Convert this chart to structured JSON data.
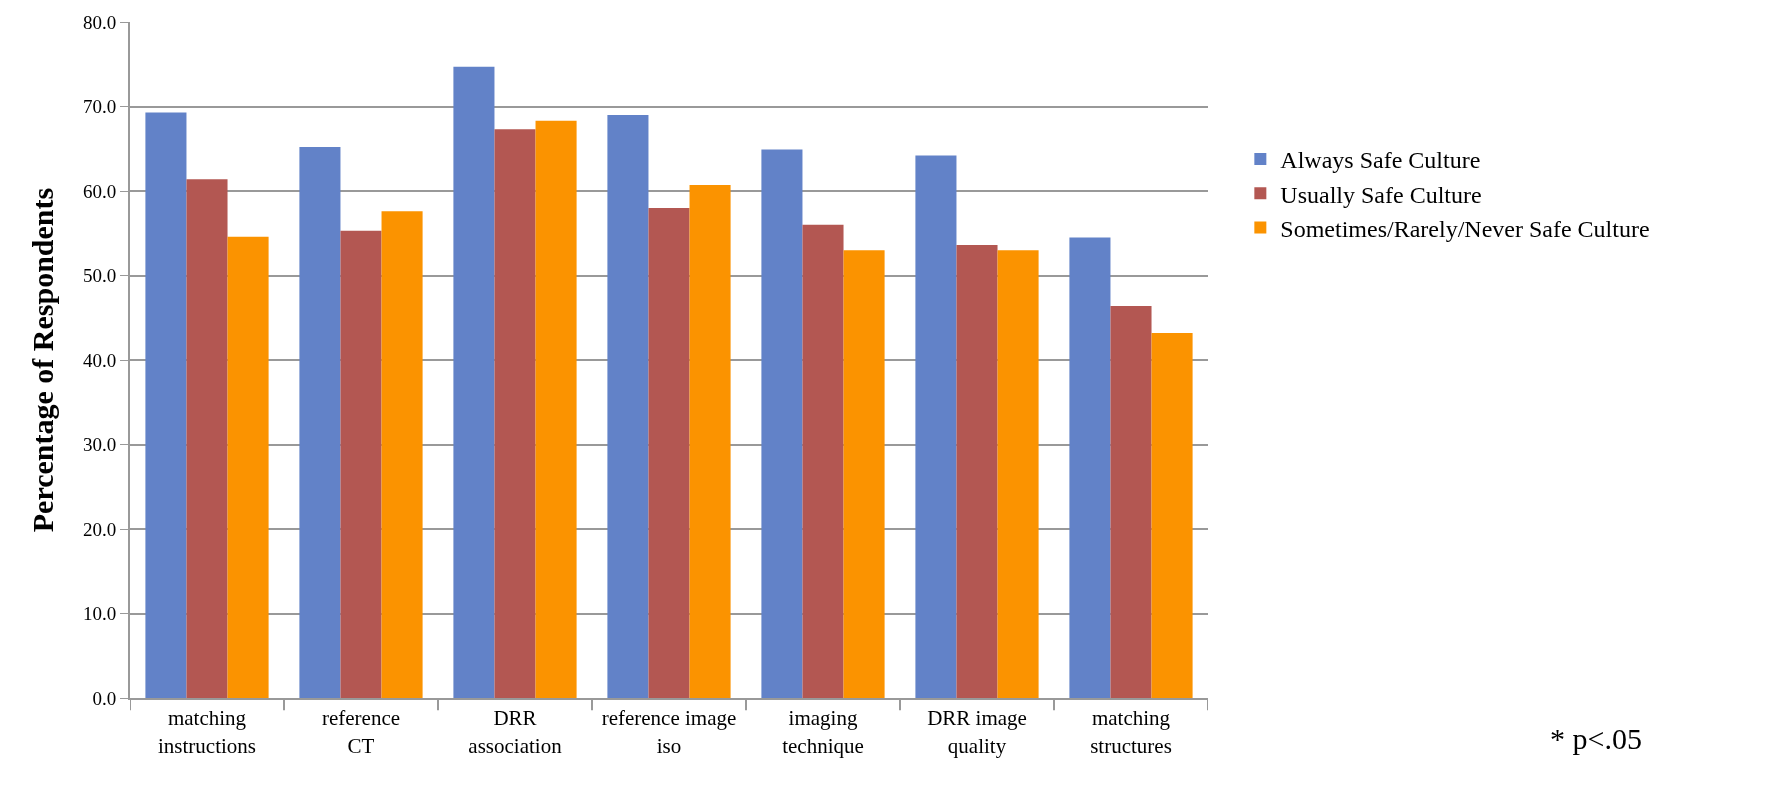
{
  "chart_data": {
    "type": "bar",
    "ylabel": "Percentage of Respondents",
    "categories": [
      "matching instructions",
      "reference CT",
      "DRR association",
      "reference image iso",
      "imaging technique",
      "DRR image quality",
      "matching structures"
    ],
    "series": [
      {
        "name": "Always Safe Culture",
        "color": "#6282c8",
        "values": [
          69.3,
          65.2,
          74.7,
          69.0,
          64.9,
          64.2,
          54.5
        ]
      },
      {
        "name": "Usually Safe Culture",
        "color": "#b35752",
        "values": [
          61.4,
          55.3,
          67.3,
          58.0,
          56.0,
          53.6,
          46.4
        ]
      },
      {
        "name": "Sometimes/Rarely/Never Safe Culture",
        "color": "#fb9300",
        "values": [
          54.6,
          57.6,
          68.3,
          60.7,
          53.0,
          53.0,
          43.2
        ]
      }
    ],
    "ylim": [
      0,
      80
    ],
    "yticks": [
      {
        "value": 0,
        "label": "0.0"
      },
      {
        "value": 10,
        "label": "10.0"
      },
      {
        "value": 20,
        "label": "20.0"
      },
      {
        "value": 30,
        "label": "30.0"
      },
      {
        "value": 40,
        "label": "40.0"
      },
      {
        "value": 50,
        "label": "50.0"
      },
      {
        "value": 60,
        "label": "60.0"
      },
      {
        "value": 70,
        "label": "70.0"
      },
      {
        "value": 80,
        "label": "80.0"
      }
    ],
    "grid": "y",
    "legend": "right",
    "annotations": [
      "* p<.05"
    ]
  }
}
